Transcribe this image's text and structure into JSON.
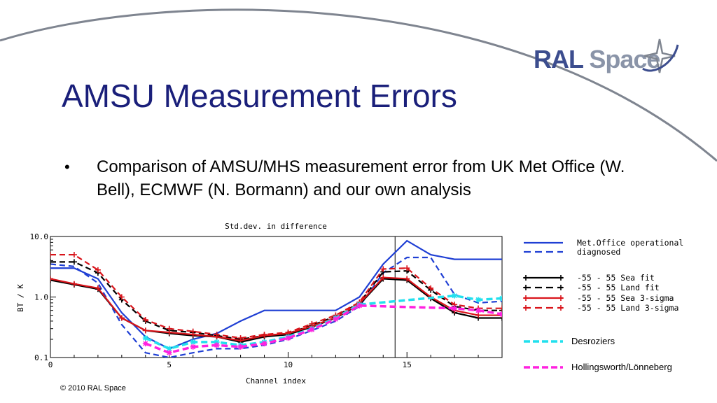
{
  "slide": {
    "title": "AMSU Measurement Errors",
    "bullet_marker": "•",
    "bullet": "Comparison of AMSU/MHS measurement error from UK Met Office (W. Bell), ECMWF (N. Bormann) and our own analysis",
    "footer": "© 2010 RAL Space",
    "logo": {
      "word1": "RAL",
      "word2": "Space",
      "icon": "star-orbit-icon"
    }
  },
  "chart_data": {
    "type": "line",
    "title": "Std.dev. in difference",
    "xlabel": "Channel index",
    "ylabel": "BT / K",
    "xlim": [
      0,
      19
    ],
    "ylim": [
      0.1,
      10.0
    ],
    "yscale": "log",
    "xticks": [
      "0",
      "5",
      "10",
      "15"
    ],
    "yticks": [
      "10.0",
      "1.0",
      "0.1"
    ],
    "vline_x": 14.5,
    "grid": false,
    "legend_position": "right",
    "series": [
      {
        "name": "Met.Office operational",
        "color": "#1f3fd4",
        "dash": "solid",
        "marker": "none",
        "x": [
          0,
          1,
          2,
          3,
          4,
          5,
          6,
          7,
          8,
          9,
          10,
          11,
          12,
          13,
          14,
          15,
          16,
          17,
          18,
          19
        ],
        "y": [
          3.0,
          3.0,
          2.0,
          0.55,
          0.22,
          0.14,
          0.2,
          0.25,
          0.4,
          0.6,
          0.6,
          0.6,
          0.6,
          1.0,
          3.5,
          8.5,
          5.0,
          4.2,
          4.2,
          4.2
        ]
      },
      {
        "name": "diagnosed",
        "color": "#1f3fd4",
        "dash": "dashed",
        "marker": "none",
        "x": [
          0,
          1,
          2,
          3,
          4,
          5,
          6,
          7,
          8,
          9,
          10,
          11,
          12,
          13,
          14,
          15,
          16,
          17,
          18,
          19
        ],
        "y": [
          3.5,
          3.2,
          1.7,
          0.35,
          0.12,
          0.1,
          0.12,
          0.14,
          0.14,
          0.16,
          0.2,
          0.28,
          0.4,
          0.7,
          2.5,
          4.5,
          4.5,
          1.1,
          0.8,
          0.85
        ]
      },
      {
        "name": "-55 - 55 Sea fit",
        "color": "#000000",
        "dash": "solid",
        "marker": "plus",
        "x": [
          0,
          1,
          2,
          3,
          4,
          5,
          6,
          7,
          8,
          9,
          10,
          11,
          12,
          13,
          14,
          15,
          16,
          17,
          18,
          19
        ],
        "y": [
          1.9,
          1.6,
          1.35,
          0.45,
          0.28,
          0.25,
          0.23,
          0.22,
          0.18,
          0.22,
          0.24,
          0.32,
          0.45,
          0.75,
          2.0,
          1.9,
          0.95,
          0.55,
          0.45,
          0.45
        ]
      },
      {
        "name": "-55 - 55 Land fit",
        "color": "#000000",
        "dash": "dashed",
        "marker": "plus",
        "x": [
          0,
          1,
          2,
          3,
          4,
          5,
          6,
          7,
          8,
          9,
          10,
          11,
          12,
          13,
          14,
          15,
          16,
          17,
          18,
          19
        ],
        "y": [
          3.8,
          3.8,
          2.5,
          0.9,
          0.4,
          0.28,
          0.26,
          0.23,
          0.2,
          0.23,
          0.25,
          0.34,
          0.48,
          0.8,
          2.6,
          2.7,
          1.3,
          0.7,
          0.6,
          0.6
        ]
      },
      {
        "name": "-55 - 55 Sea 3-sigma",
        "color": "#d9141b",
        "dash": "solid",
        "marker": "plus",
        "x": [
          0,
          1,
          2,
          3,
          4,
          5,
          6,
          7,
          8,
          9,
          10,
          11,
          12,
          13,
          14,
          15,
          16,
          17,
          18,
          19
        ],
        "y": [
          2.0,
          1.65,
          1.4,
          0.45,
          0.28,
          0.26,
          0.24,
          0.22,
          0.19,
          0.23,
          0.25,
          0.33,
          0.46,
          0.78,
          2.1,
          2.0,
          1.0,
          0.6,
          0.5,
          0.5
        ]
      },
      {
        "name": "-55 - 55 Land 3-sigma",
        "color": "#d9141b",
        "dash": "dashed",
        "marker": "plus",
        "x": [
          0,
          1,
          2,
          3,
          4,
          5,
          6,
          7,
          8,
          9,
          10,
          11,
          12,
          13,
          14,
          15,
          16,
          17,
          18,
          19
        ],
        "y": [
          5.0,
          5.0,
          2.8,
          1.0,
          0.42,
          0.3,
          0.27,
          0.24,
          0.21,
          0.24,
          0.26,
          0.36,
          0.5,
          0.82,
          2.9,
          3.0,
          1.4,
          0.75,
          0.65,
          0.65
        ]
      },
      {
        "name": "Desroziers",
        "color": "#22e0ee",
        "dash": "dashed",
        "marker": "star",
        "x": [
          4,
          5,
          6,
          7,
          8,
          9,
          10,
          11,
          12,
          13,
          17,
          18,
          19
        ],
        "y": [
          0.21,
          0.14,
          0.18,
          0.18,
          0.16,
          0.18,
          0.22,
          0.3,
          0.45,
          0.75,
          1.05,
          0.9,
          0.95
        ]
      },
      {
        "name": "Hollingsworth/Lönneberg",
        "color": "#ff22e0",
        "dash": "dashed",
        "marker": "star",
        "x": [
          4,
          5,
          6,
          7,
          8,
          9,
          10,
          11,
          12,
          13,
          17,
          18,
          19
        ],
        "y": [
          0.17,
          0.12,
          0.15,
          0.16,
          0.15,
          0.17,
          0.21,
          0.29,
          0.43,
          0.72,
          0.65,
          0.6,
          0.52
        ]
      }
    ]
  }
}
